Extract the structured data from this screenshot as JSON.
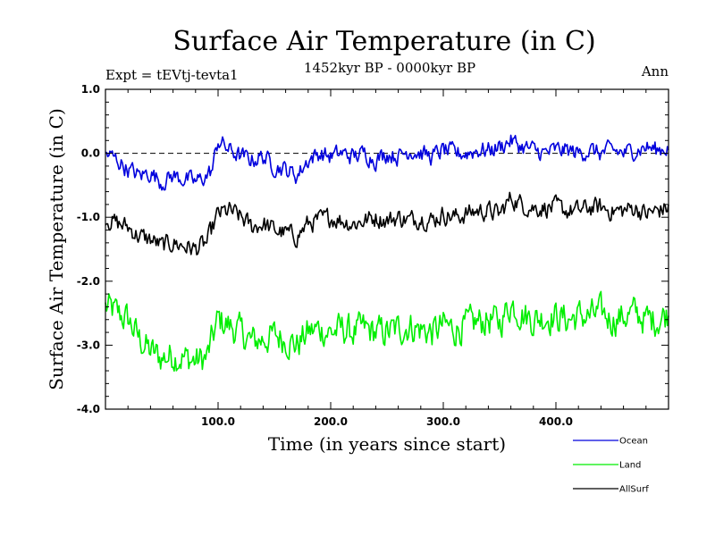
{
  "chart_data": {
    "type": "line",
    "title": "Surface Air Temperature (in C)",
    "subtitle_left": "Expt = tEVtj-tevta1",
    "subtitle_center": "1452kyr BP - 0000kyr BP",
    "subtitle_right": "Ann",
    "xlabel": "Time (in years since start)",
    "ylabel": "Surface Air Temperature (in C)",
    "xlim": [
      0,
      500
    ],
    "ylim": [
      -4.0,
      1.0
    ],
    "x_ticks": [
      100,
      200,
      300,
      400
    ],
    "x_tick_labels": [
      "100.0",
      "200.0",
      "300.0",
      "400.0"
    ],
    "y_ticks": [
      1.0,
      0.0,
      -1.0,
      -2.0,
      -3.0,
      -4.0
    ],
    "y_tick_labels": [
      "1.0",
      "0.0",
      "-1.0",
      "-2.0",
      "-3.0",
      "-4.0"
    ],
    "reference_line": 0.0,
    "legend_position": "bottom-right, below plot",
    "series": [
      {
        "name": "Ocean",
        "color": "#0000dd",
        "points": [
          [
            0,
            0.0
          ],
          [
            10,
            -0.1
          ],
          [
            20,
            -0.25
          ],
          [
            30,
            -0.35
          ],
          [
            40,
            -0.3
          ],
          [
            50,
            -0.45
          ],
          [
            60,
            -0.35
          ],
          [
            70,
            -0.4
          ],
          [
            80,
            -0.45
          ],
          [
            90,
            -0.35
          ],
          [
            95,
            -0.25
          ],
          [
            100,
            0.2
          ],
          [
            110,
            0.05
          ],
          [
            120,
            -0.05
          ],
          [
            130,
            -0.1
          ],
          [
            140,
            -0.05
          ],
          [
            150,
            -0.2
          ],
          [
            160,
            -0.25
          ],
          [
            170,
            -0.35
          ],
          [
            180,
            -0.1
          ],
          [
            190,
            0.0
          ],
          [
            200,
            -0.05
          ],
          [
            210,
            0.0
          ],
          [
            220,
            -0.05
          ],
          [
            230,
            0.0
          ],
          [
            240,
            -0.1
          ],
          [
            250,
            0.0
          ],
          [
            260,
            -0.05
          ],
          [
            270,
            0.05
          ],
          [
            280,
            0.0
          ],
          [
            290,
            -0.05
          ],
          [
            300,
            0.05
          ],
          [
            310,
            0.0
          ],
          [
            320,
            0.0
          ],
          [
            330,
            0.05
          ],
          [
            340,
            0.05
          ],
          [
            350,
            0.1
          ],
          [
            360,
            0.2
          ],
          [
            370,
            0.1
          ],
          [
            380,
            0.05
          ],
          [
            390,
            0.0
          ],
          [
            400,
            0.05
          ],
          [
            410,
            0.05
          ],
          [
            420,
            0.0
          ],
          [
            430,
            0.05
          ],
          [
            440,
            0.0
          ],
          [
            450,
            0.05
          ],
          [
            460,
            0.0
          ],
          [
            470,
            0.05
          ],
          [
            480,
            0.1
          ],
          [
            490,
            0.05
          ],
          [
            500,
            0.1
          ]
        ]
      },
      {
        "name": "Land",
        "color": "#00ee00",
        "points": [
          [
            0,
            -2.4
          ],
          [
            10,
            -2.5
          ],
          [
            20,
            -2.6
          ],
          [
            30,
            -2.9
          ],
          [
            40,
            -3.1
          ],
          [
            50,
            -3.2
          ],
          [
            60,
            -3.15
          ],
          [
            70,
            -3.2
          ],
          [
            80,
            -3.25
          ],
          [
            90,
            -3.2
          ],
          [
            100,
            -2.6
          ],
          [
            110,
            -2.7
          ],
          [
            120,
            -2.8
          ],
          [
            130,
            -2.95
          ],
          [
            140,
            -2.9
          ],
          [
            150,
            -2.85
          ],
          [
            160,
            -2.9
          ],
          [
            170,
            -3.0
          ],
          [
            180,
            -2.8
          ],
          [
            190,
            -2.75
          ],
          [
            200,
            -2.8
          ],
          [
            210,
            -2.75
          ],
          [
            220,
            -2.8
          ],
          [
            230,
            -2.75
          ],
          [
            240,
            -2.8
          ],
          [
            250,
            -2.8
          ],
          [
            260,
            -2.75
          ],
          [
            270,
            -2.7
          ],
          [
            280,
            -2.75
          ],
          [
            290,
            -2.8
          ],
          [
            300,
            -2.7
          ],
          [
            310,
            -2.75
          ],
          [
            320,
            -2.7
          ],
          [
            330,
            -2.65
          ],
          [
            340,
            -2.6
          ],
          [
            350,
            -2.65
          ],
          [
            360,
            -2.35
          ],
          [
            370,
            -2.5
          ],
          [
            380,
            -2.6
          ],
          [
            390,
            -2.55
          ],
          [
            400,
            -2.55
          ],
          [
            410,
            -2.6
          ],
          [
            420,
            -2.55
          ],
          [
            430,
            -2.55
          ],
          [
            440,
            -2.5
          ],
          [
            450,
            -2.6
          ],
          [
            460,
            -2.55
          ],
          [
            470,
            -2.5
          ],
          [
            480,
            -2.6
          ],
          [
            490,
            -2.6
          ],
          [
            500,
            -2.5
          ]
        ]
      },
      {
        "name": "AllSurf",
        "color": "#000000",
        "points": [
          [
            0,
            -1.0
          ],
          [
            10,
            -1.1
          ],
          [
            20,
            -1.15
          ],
          [
            30,
            -1.3
          ],
          [
            40,
            -1.35
          ],
          [
            50,
            -1.45
          ],
          [
            60,
            -1.4
          ],
          [
            70,
            -1.45
          ],
          [
            80,
            -1.5
          ],
          [
            90,
            -1.4
          ],
          [
            100,
            -0.95
          ],
          [
            110,
            -0.9
          ],
          [
            120,
            -1.0
          ],
          [
            130,
            -1.15
          ],
          [
            140,
            -1.1
          ],
          [
            150,
            -1.2
          ],
          [
            160,
            -1.25
          ],
          [
            170,
            -1.3
          ],
          [
            180,
            -1.1
          ],
          [
            190,
            -1.05
          ],
          [
            200,
            -1.0
          ],
          [
            210,
            -1.05
          ],
          [
            220,
            -1.1
          ],
          [
            230,
            -1.05
          ],
          [
            240,
            -1.0
          ],
          [
            250,
            -1.05
          ],
          [
            260,
            -1.0
          ],
          [
            270,
            -1.05
          ],
          [
            280,
            -1.0
          ],
          [
            290,
            -1.05
          ],
          [
            300,
            -0.95
          ],
          [
            310,
            -1.0
          ],
          [
            320,
            -0.95
          ],
          [
            330,
            -0.9
          ],
          [
            340,
            -0.9
          ],
          [
            350,
            -0.95
          ],
          [
            360,
            -0.7
          ],
          [
            370,
            -0.8
          ],
          [
            380,
            -0.85
          ],
          [
            390,
            -0.85
          ],
          [
            400,
            -0.85
          ],
          [
            410,
            -0.9
          ],
          [
            420,
            -0.9
          ],
          [
            430,
            -0.85
          ],
          [
            440,
            -0.85
          ],
          [
            450,
            -0.9
          ],
          [
            460,
            -0.9
          ],
          [
            470,
            -0.85
          ],
          [
            480,
            -0.95
          ],
          [
            490,
            -0.9
          ],
          [
            500,
            -0.85
          ]
        ]
      }
    ]
  }
}
